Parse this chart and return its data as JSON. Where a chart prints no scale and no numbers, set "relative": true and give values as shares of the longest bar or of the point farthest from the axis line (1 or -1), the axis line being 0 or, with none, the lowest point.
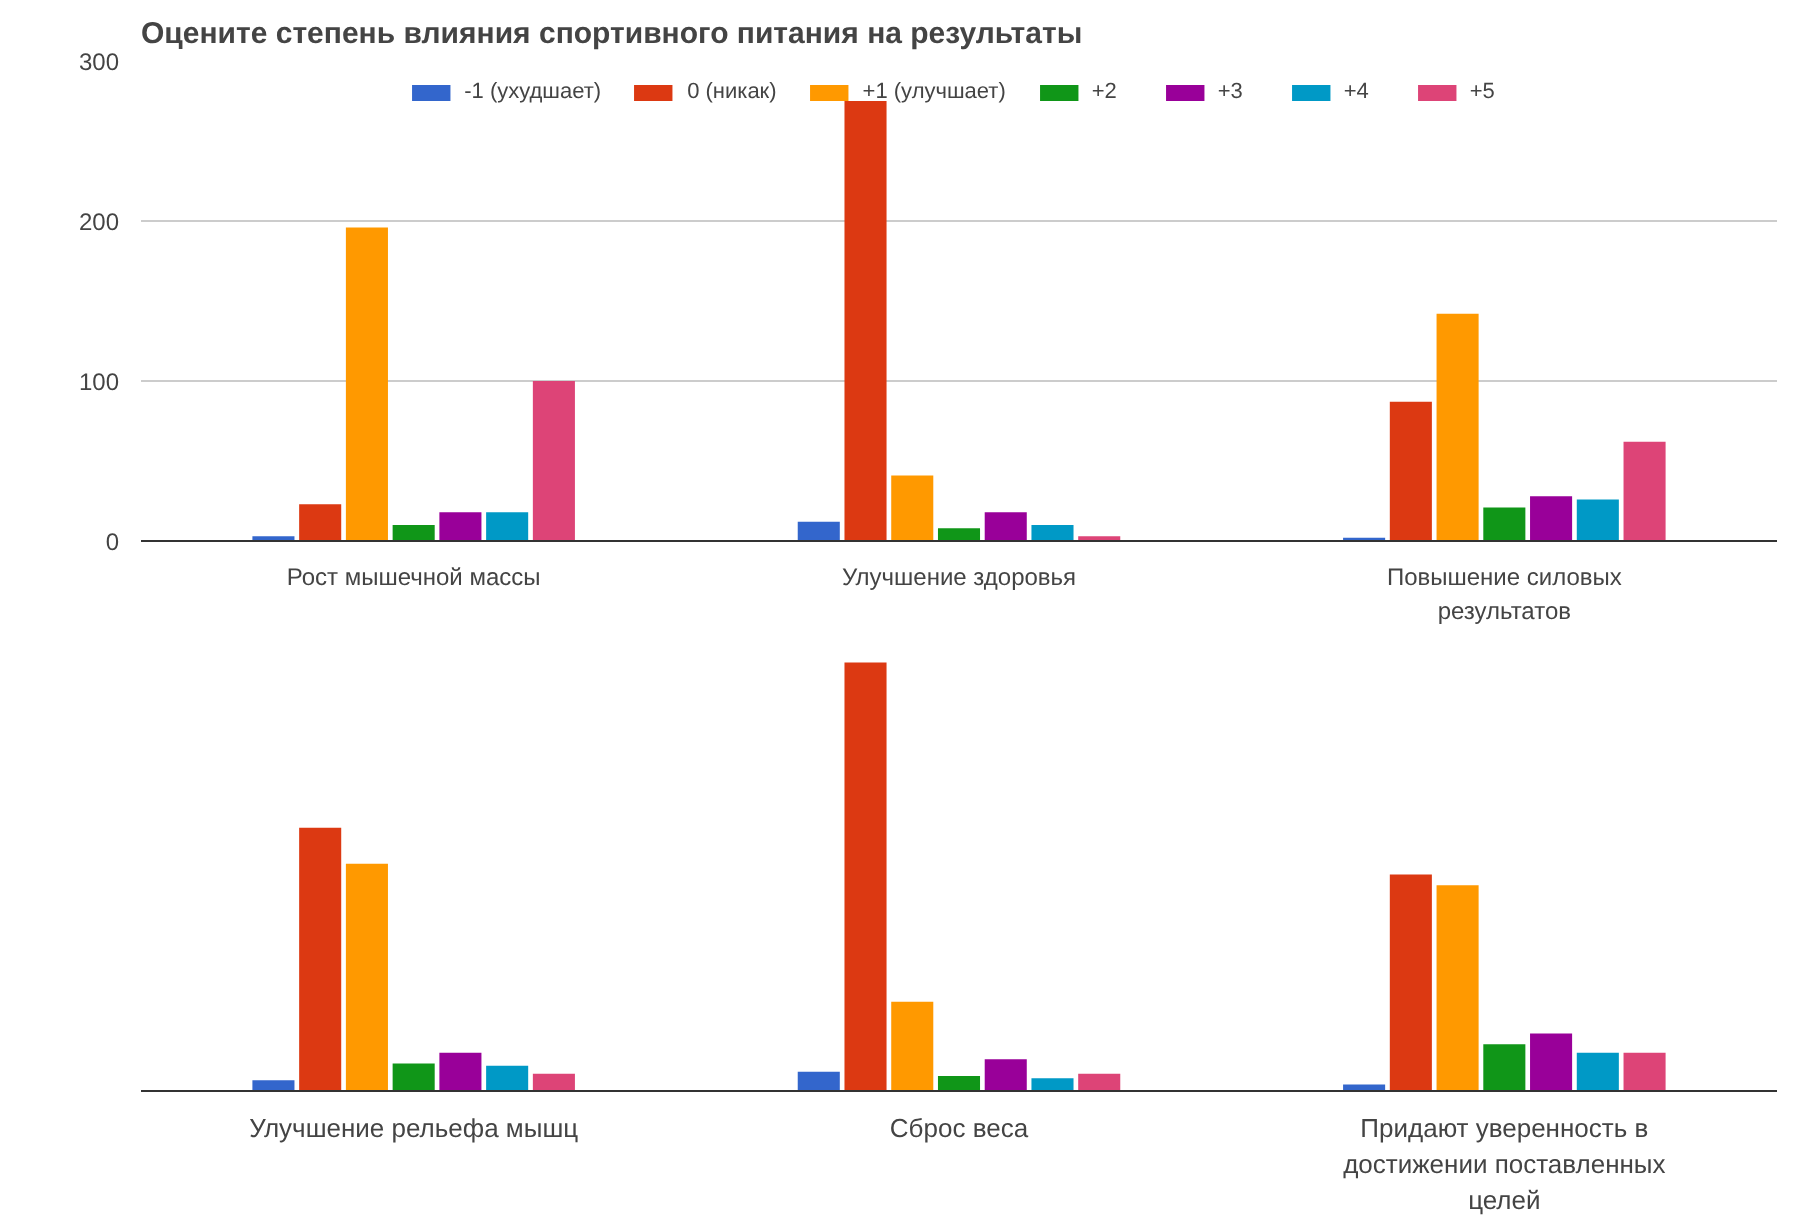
{
  "chart_data": [
    {
      "type": "bar",
      "title": "Оцените степень влияния спортивного питания на результаты",
      "categories": [
        "Рост мышечной массы",
        "Улучшение здоровья",
        "Повышение силовых результатов"
      ],
      "ylim": [
        0,
        300
      ],
      "yticks": [
        0,
        100,
        200,
        300
      ],
      "grid": "y",
      "legend": "top",
      "series": [
        {
          "name": "-1 (ухудшает)",
          "color": "#3366cc",
          "values": [
            3,
            12,
            2
          ]
        },
        {
          "name": "0 (никак)",
          "color": "#dc3912",
          "values": [
            23,
            275,
            87
          ]
        },
        {
          "name": "+1 (улучшает)",
          "color": "#ff9900",
          "values": [
            196,
            41,
            142
          ]
        },
        {
          "name": "+2",
          "color": "#109618",
          "values": [
            10,
            8,
            21
          ]
        },
        {
          "name": "+3",
          "color": "#990099",
          "values": [
            18,
            18,
            28
          ]
        },
        {
          "name": "+4",
          "color": "#0099c6",
          "values": [
            18,
            10,
            26
          ]
        },
        {
          "name": "+5",
          "color": "#dd4477",
          "values": [
            100,
            3,
            62
          ]
        }
      ]
    },
    {
      "type": "bar",
      "relative": true,
      "categories": [
        "Улучшение рельефа мышц",
        "Сброс веса",
        "Придают уверенность в достижении поставленных целей"
      ],
      "series": [
        {
          "color": "#3366cc",
          "values": [
            0.025,
            0.045,
            0.015
          ]
        },
        {
          "color": "#dc3912",
          "values": [
            0.614,
            1,
            0.505
          ]
        },
        {
          "color": "#ff9900",
          "values": [
            0.53,
            0.208,
            0.48
          ]
        },
        {
          "color": "#109618",
          "values": [
            0.064,
            0.035,
            0.109
          ]
        },
        {
          "color": "#990099",
          "values": [
            0.089,
            0.074,
            0.134
          ]
        },
        {
          "color": "#0099c6",
          "values": [
            0.059,
            0.03,
            0.089
          ]
        },
        {
          "color": "#dd4477",
          "values": [
            0.04,
            0.04,
            0.089
          ]
        }
      ]
    }
  ]
}
